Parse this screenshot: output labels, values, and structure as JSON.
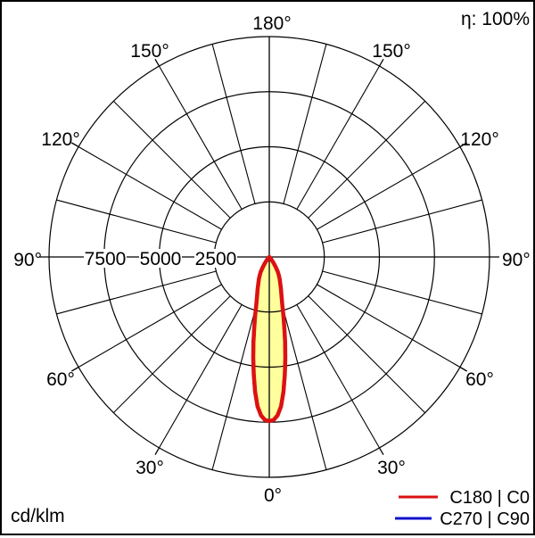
{
  "chart_data": {
    "type": "line",
    "polar": true,
    "unit": "cd/klm",
    "efficiency": "η: 100%",
    "r_axis_max": 10000,
    "radial_rings": [
      2500,
      5000,
      7500,
      10000
    ],
    "radial_tick_labels": [
      "7500",
      "5000",
      "2500"
    ],
    "angle_labels": [
      "0°",
      "30°",
      "60°",
      "90°",
      "120°",
      "150°",
      "180°"
    ],
    "grid": {
      "spoke_step_deg": 15,
      "label_step_deg": 30
    },
    "series": [
      {
        "name": "C180 | C0",
        "color": "#dd1111",
        "fill": "#ffff9e",
        "angles_deg": [
          0,
          1.5,
          3,
          4.5,
          6,
          7.5,
          9,
          10.5,
          12,
          13.5,
          15,
          17.5,
          20,
          22.5,
          25,
          27.5,
          30,
          32.5,
          35,
          40,
          45,
          50,
          60,
          90,
          120,
          150,
          180
        ],
        "values": [
          7450,
          7400,
          7200,
          6800,
          6150,
          5400,
          4650,
          3950,
          3300,
          2750,
          2300,
          1850,
          1550,
          1300,
          1120,
          950,
          780,
          560,
          350,
          130,
          35,
          0,
          0,
          0,
          0,
          0,
          0
        ]
      },
      {
        "name": "C270 | C90",
        "color": "#1111cc",
        "fill": "#ffff9e",
        "angles_deg": [
          0,
          1.5,
          3,
          4.5,
          6,
          7.5,
          9,
          10.5,
          12,
          13.5,
          15,
          17.5,
          20,
          22.5,
          25,
          27.5,
          30,
          32.5,
          35,
          40,
          45,
          50,
          60,
          90,
          120,
          150,
          180
        ],
        "values": [
          7450,
          7400,
          7200,
          6800,
          6150,
          5400,
          4650,
          3950,
          3300,
          2750,
          2300,
          1850,
          1550,
          1300,
          1120,
          950,
          780,
          560,
          350,
          130,
          35,
          0,
          0,
          0,
          0,
          0,
          0
        ]
      }
    ]
  }
}
